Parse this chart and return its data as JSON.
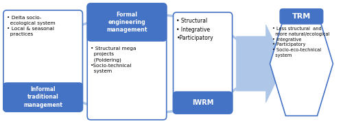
{
  "bg_color": "#ffffff",
  "blue_header": "#4472c4",
  "arrow_color": "#aec6e8",
  "text_dark": "#000000",
  "text_white": "#ffffff",
  "box1_header": "Informal\ntraditional\nmanagement",
  "box1_bullets": "• Delta socio-\n  ecological system\n• Local & seasonal\n  practices",
  "box2_header": "Formal\nengineering\nmanagement",
  "box2_bullets": "• Structural mega\n  projects\n  (Poldering)\n•Socio-technical\n  system",
  "box3_header": "IWRM",
  "box3_bullets": "• Structural\n• Integrative\n•Participatory",
  "box4_header": "TRM",
  "box4_bullets": "• Less structural  and\n  more natural/ecological\n• Integrative\n• Participatory\n• Socio-eco-technical\n  system"
}
